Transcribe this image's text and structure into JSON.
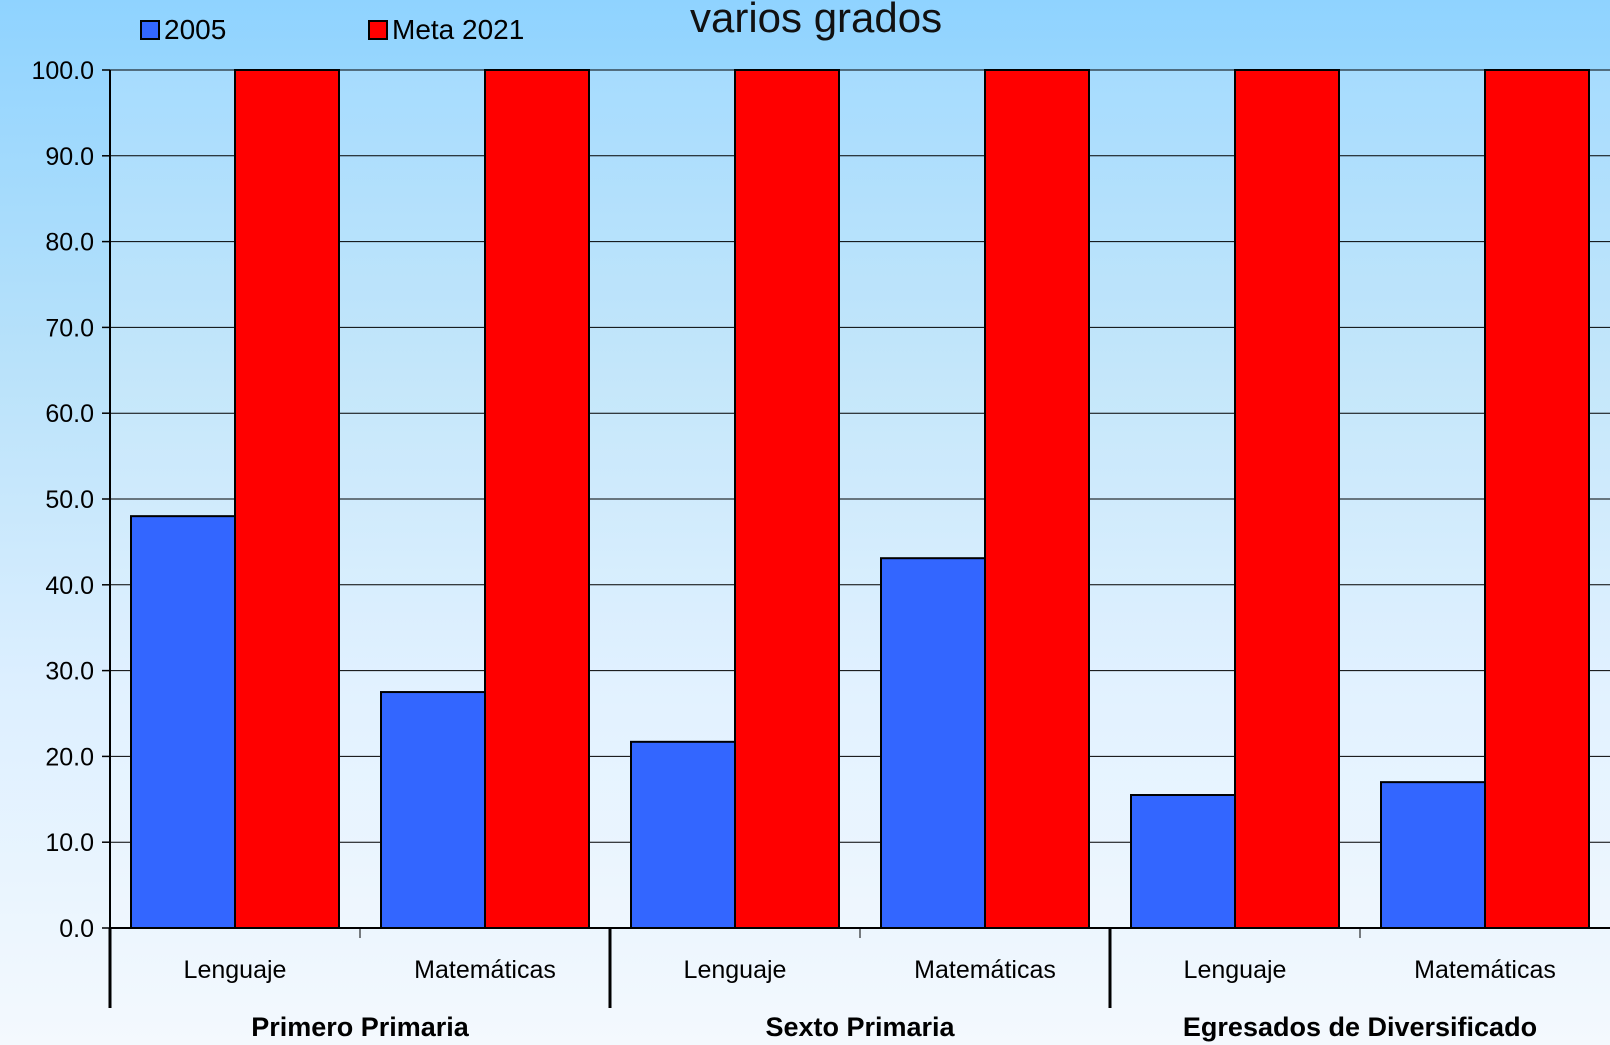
{
  "chart_data": {
    "type": "bar",
    "title": "varios grados",
    "ylim": [
      0,
      100
    ],
    "yticks": [
      "0.0",
      "10.0",
      "20.0",
      "30.0",
      "40.0",
      "50.0",
      "60.0",
      "70.0",
      "80.0",
      "90.0",
      "100.0"
    ],
    "groups": [
      "Primero Primaria",
      "Sexto Primaria",
      "Egresados de Diversificado"
    ],
    "categories": [
      "Lenguaje",
      "Matemáticas",
      "Lenguaje",
      "Matemáticas",
      "Lenguaje",
      "Matemáticas"
    ],
    "series": [
      {
        "name": "2005",
        "color": "#3366ff",
        "values": [
          48.0,
          27.5,
          21.7,
          43.1,
          15.5,
          17.0
        ]
      },
      {
        "name": "Meta 2021",
        "color": "#ff0000",
        "values": [
          100,
          100,
          100,
          100,
          100,
          100
        ]
      }
    ],
    "grid": true,
    "legend_position": "top-left"
  }
}
